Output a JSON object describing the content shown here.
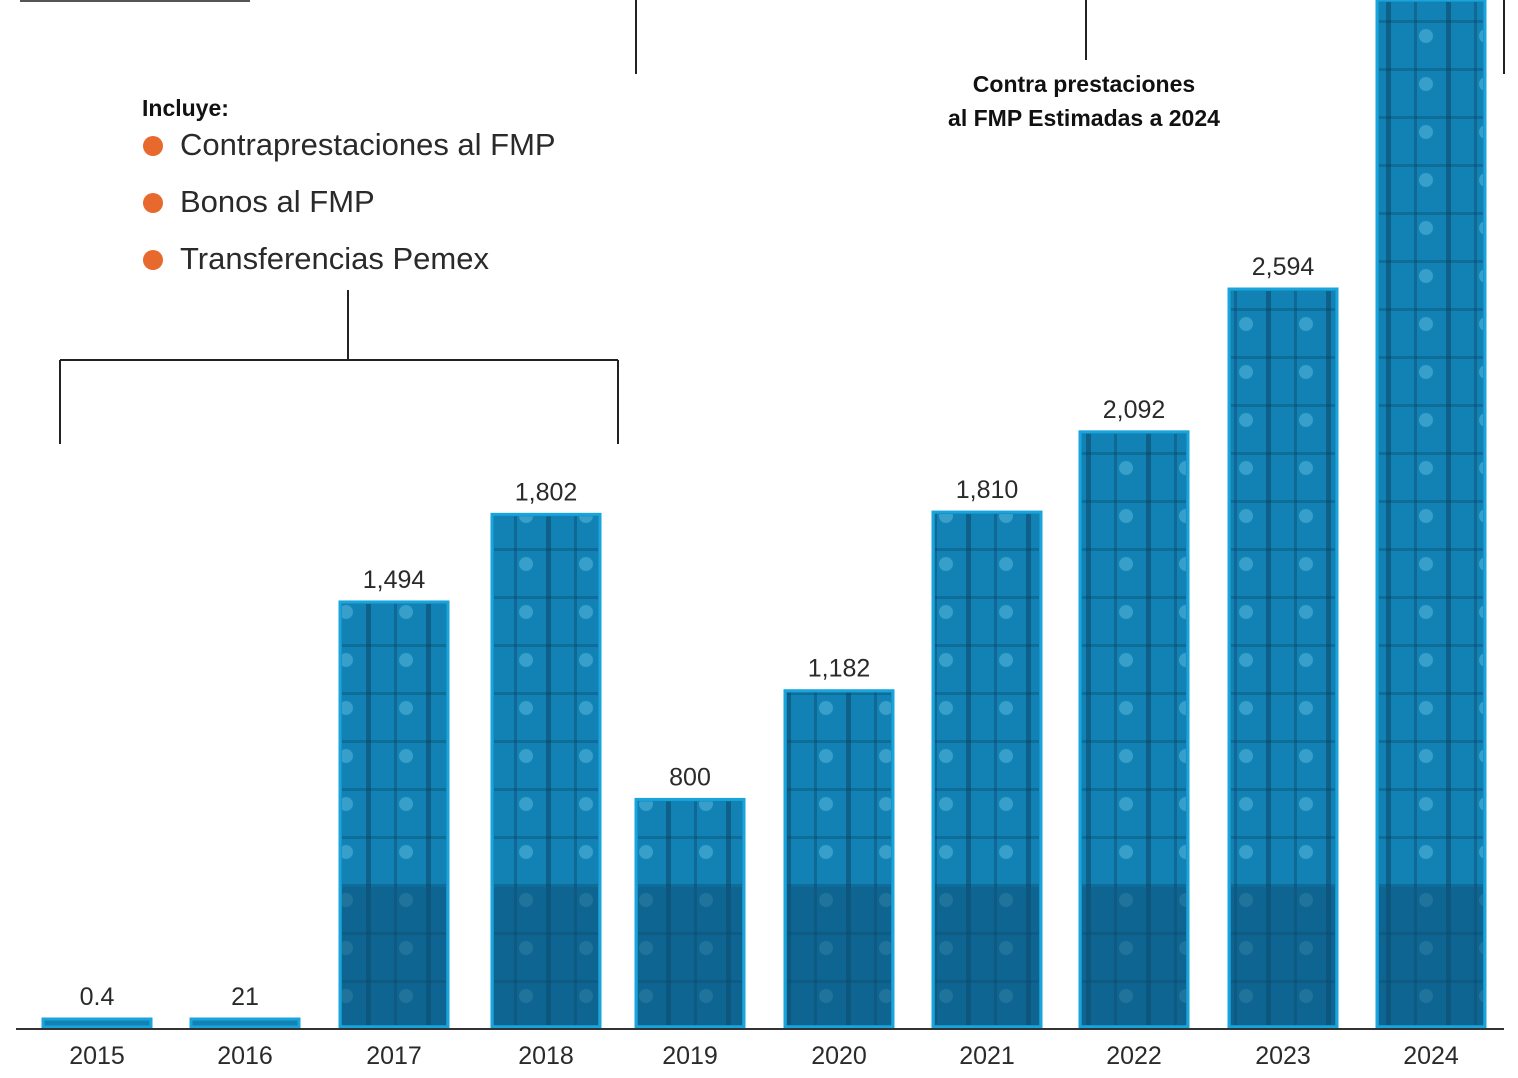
{
  "legend": {
    "title": "Incluye:",
    "items": [
      {
        "label": "Contraprestaciones al FMP",
        "color": "#e8692d"
      },
      {
        "label": "Bonos al FMP",
        "color": "#e8692d"
      },
      {
        "label": "Transferencias Pemex",
        "color": "#e8692d"
      }
    ]
  },
  "annotation": {
    "line1": "Contra prestaciones",
    "line2": "al FMP Estimadas a 2024"
  },
  "colors": {
    "bar": "#1aa4dc",
    "bar_dark": "#0d4f72",
    "bar_mid": "#1282b5",
    "axis": "#333333",
    "bullet": "#e8692d"
  },
  "chart_data": {
    "type": "bar",
    "categories": [
      "2015",
      "2016",
      "2017",
      "2018",
      "2019",
      "2020",
      "2021",
      "2022",
      "2023",
      "2024"
    ],
    "values": [
      0.4,
      21,
      1494,
      1802,
      800,
      1182,
      1810,
      2092,
      2594,
      null
    ],
    "value_labels": [
      "0.4",
      "21",
      "1,494",
      "1,802",
      "800",
      "1,182",
      "1,810",
      "2,092",
      "2,594",
      ""
    ],
    "title": "",
    "xlabel": "",
    "ylabel": "",
    "grid": false
  }
}
